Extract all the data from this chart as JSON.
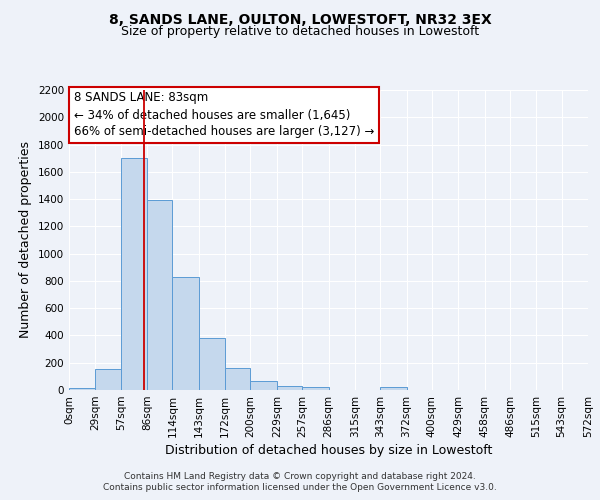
{
  "title": "8, SANDS LANE, OULTON, LOWESTOFT, NR32 3EX",
  "subtitle": "Size of property relative to detached houses in Lowestoft",
  "xlabel": "Distribution of detached houses by size in Lowestoft",
  "ylabel": "Number of detached properties",
  "bar_values": [
    15,
    155,
    1700,
    1390,
    830,
    385,
    165,
    65,
    30,
    20,
    0,
    0,
    20,
    0,
    0,
    0,
    0,
    0,
    0,
    0
  ],
  "bin_edges": [
    0,
    29,
    57,
    86,
    114,
    143,
    172,
    200,
    229,
    257,
    286,
    315,
    343,
    372,
    400,
    429,
    458,
    486,
    515,
    543,
    572
  ],
  "tick_labels": [
    "0sqm",
    "29sqm",
    "57sqm",
    "86sqm",
    "114sqm",
    "143sqm",
    "172sqm",
    "200sqm",
    "229sqm",
    "257sqm",
    "286sqm",
    "315sqm",
    "343sqm",
    "372sqm",
    "400sqm",
    "429sqm",
    "458sqm",
    "486sqm",
    "515sqm",
    "543sqm",
    "572sqm"
  ],
  "ylim": [
    0,
    2200
  ],
  "yticks": [
    0,
    200,
    400,
    600,
    800,
    1000,
    1200,
    1400,
    1600,
    1800,
    2000,
    2200
  ],
  "bar_color": "#c5d8ed",
  "bar_edge_color": "#5b9bd5",
  "vline_x": 83,
  "vline_color": "#cc0000",
  "annotation_line1": "8 SANDS LANE: 83sqm",
  "annotation_line2": "← 34% of detached houses are smaller (1,645)",
  "annotation_line3": "66% of semi-detached houses are larger (3,127) →",
  "footer_line1": "Contains HM Land Registry data © Crown copyright and database right 2024.",
  "footer_line2": "Contains public sector information licensed under the Open Government Licence v3.0.",
  "background_color": "#eef2f9",
  "grid_color": "#ffffff",
  "title_fontsize": 10,
  "subtitle_fontsize": 9,
  "axis_label_fontsize": 9,
  "tick_fontsize": 7.5,
  "annotation_fontsize": 8.5,
  "footer_fontsize": 6.5
}
